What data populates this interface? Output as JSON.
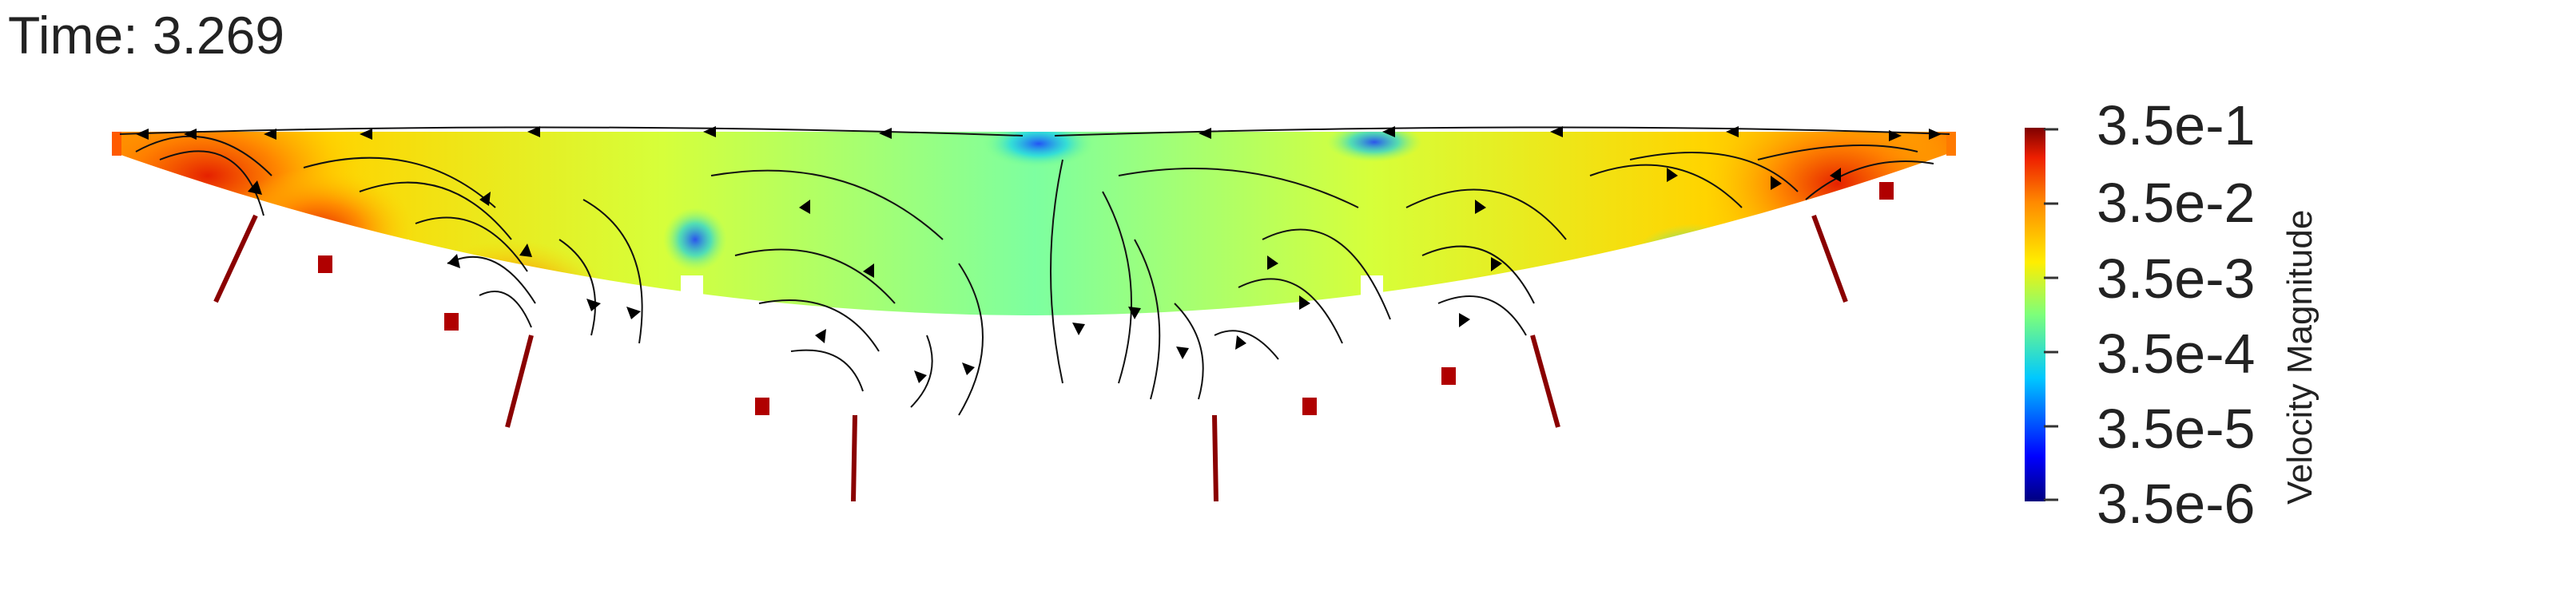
{
  "time_label": "Time: 3.269",
  "legend": {
    "title": "Velocity Magnitude",
    "scale": "log",
    "ticks": [
      "3.5e-1",
      "3.5e-2",
      "3.5e-3",
      "3.5e-4",
      "3.5e-5",
      "3.5e-6"
    ]
  },
  "colors": {
    "colormap": [
      "#00007f",
      "#0000ff",
      "#00c8ff",
      "#7dff7a",
      "#ffee00",
      "#ff8a00",
      "#ee1f00",
      "#7f0000"
    ],
    "streamline": "#111111",
    "background": "#ffffff"
  }
}
